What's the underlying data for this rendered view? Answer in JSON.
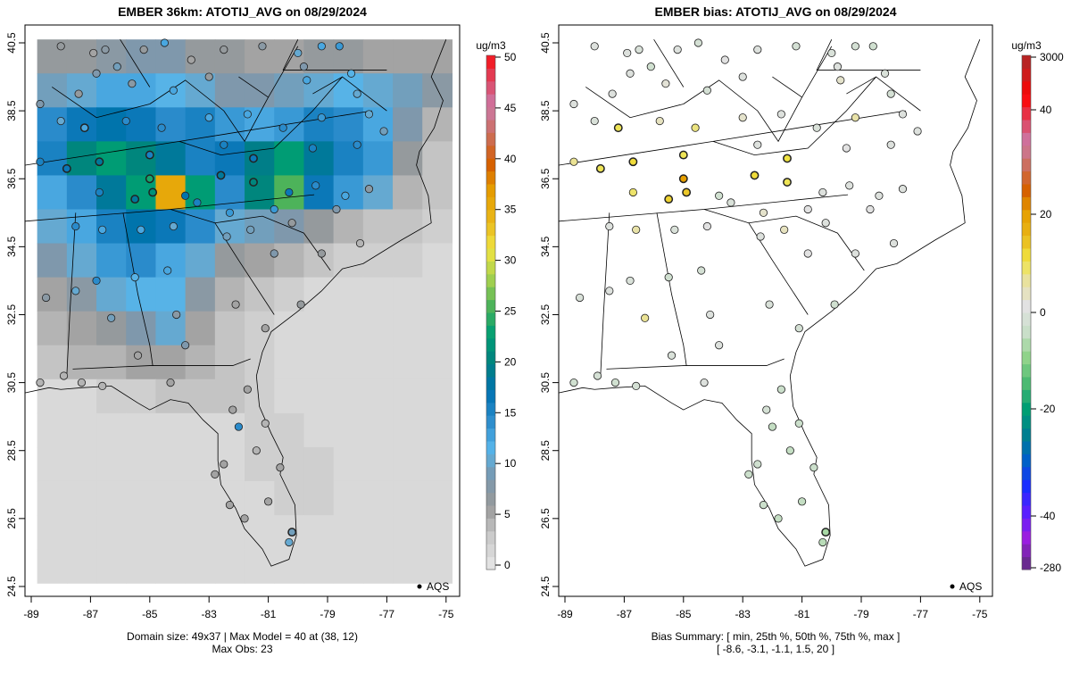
{
  "chart_data": [
    {
      "type": "heatmap",
      "title": "EMBER 36km: ATOTIJ_AVG on 08/29/2024",
      "units": "ug/m3",
      "xticks": [
        "-89",
        "-87",
        "-85",
        "-83",
        "-81",
        "-79",
        "-77",
        "-75"
      ],
      "yticks": [
        "24.5",
        "26.5",
        "28.5",
        "30.5",
        "32.5",
        "34.5",
        "36.5",
        "38.5",
        "40.5"
      ],
      "colorbar_ticks": [
        "0",
        "5",
        "10",
        "15",
        "20",
        "25",
        "30",
        "35",
        "40",
        "45",
        "50"
      ],
      "colorbar_range": [
        0,
        50
      ],
      "legend": "AQS",
      "grid_lon_range": [
        -88.8,
        -74.8
      ],
      "grid_lat_range": [
        24.6,
        40.6
      ],
      "grid_note": "model field, 1-degree resampled, rows north to south",
      "grid": [
        [
          6,
          6,
          7,
          8,
          8,
          6,
          6,
          5,
          5,
          6,
          6,
          5,
          5,
          5
        ],
        [
          9,
          10,
          12,
          12,
          11,
          10,
          8,
          8,
          9,
          10,
          11,
          10,
          9,
          7
        ],
        [
          14,
          16,
          17,
          16,
          14,
          15,
          13,
          12,
          13,
          15,
          14,
          12,
          8,
          4
        ],
        [
          15,
          20,
          22,
          20,
          18,
          15,
          16,
          19,
          22,
          18,
          15,
          13,
          6,
          3
        ],
        [
          12,
          14,
          18,
          22,
          35,
          22,
          14,
          20,
          25,
          16,
          13,
          10,
          4,
          3
        ],
        [
          10,
          12,
          15,
          17,
          16,
          14,
          10,
          9,
          8,
          6,
          4,
          3,
          3,
          2
        ],
        [
          8,
          10,
          13,
          14,
          12,
          10,
          6,
          5,
          4,
          3,
          2,
          2,
          2,
          1
        ],
        [
          5,
          7,
          10,
          11,
          11,
          7,
          4,
          3,
          2,
          1,
          1,
          1,
          1,
          1
        ],
        [
          4,
          5,
          6,
          8,
          10,
          5,
          3,
          2,
          1,
          1,
          1,
          1,
          1,
          1
        ],
        [
          3,
          4,
          4,
          5,
          5,
          4,
          3,
          2,
          1,
          1,
          1,
          1,
          1,
          1
        ],
        [
          1,
          1,
          2,
          2,
          3,
          3,
          3,
          2,
          1,
          1,
          1,
          1,
          1,
          1
        ],
        [
          1,
          1,
          1,
          1,
          1,
          1,
          1,
          2,
          2,
          1,
          1,
          1,
          1,
          1
        ],
        [
          1,
          1,
          1,
          1,
          1,
          1,
          1,
          2,
          2,
          2,
          1,
          1,
          1,
          1
        ],
        [
          1,
          1,
          1,
          1,
          1,
          1,
          1,
          1,
          2,
          2,
          1,
          1,
          1,
          1
        ],
        [
          1,
          1,
          1,
          1,
          1,
          1,
          1,
          1,
          1,
          1,
          1,
          1,
          1,
          1
        ],
        [
          1,
          1,
          1,
          1,
          1,
          1,
          1,
          1,
          1,
          1,
          1,
          1,
          1,
          1
        ]
      ],
      "footer": [
        "Domain size: 49x37 | Max Model = 40 at (38, 12)",
        "Max Obs: 23"
      ]
    },
    {
      "type": "scatter",
      "title": "EMBER bias: ATOTIJ_AVG on 08/29/2024",
      "units": "ug/m3",
      "xticks": [
        "-89",
        "-87",
        "-85",
        "-83",
        "-81",
        "-79",
        "-77",
        "-75"
      ],
      "yticks": [
        "24.5",
        "26.5",
        "28.5",
        "30.5",
        "32.5",
        "34.5",
        "36.5",
        "38.5",
        "40.5"
      ],
      "colorbar_ticks": [
        "-280",
        "-40",
        "-20",
        "0",
        "20",
        "40",
        "3000"
      ],
      "legend": "AQS",
      "footer": [
        "Bias Summary: [ min, 25th %, 50th %, 75th %, max ]",
        "[ -8.6,   -3.1,   -1.1,   1.5,   20 ]"
      ]
    }
  ],
  "stations": [
    [
      -88.0,
      40.4,
      6,
      -1
    ],
    [
      -86.9,
      40.2,
      5,
      -1
    ],
    [
      -86.5,
      40.3,
      7,
      -2
    ],
    [
      -85.2,
      40.3,
      6,
      -1
    ],
    [
      -84.5,
      40.5,
      12,
      -3
    ],
    [
      -83.6,
      40.0,
      5,
      0
    ],
    [
      -82.5,
      40.3,
      6,
      -1
    ],
    [
      -81.2,
      40.4,
      7,
      -3
    ],
    [
      -80.0,
      40.2,
      10,
      -2
    ],
    [
      -79.2,
      40.4,
      12,
      -3
    ],
    [
      -78.6,
      40.4,
      13,
      -4
    ],
    [
      -79.8,
      39.8,
      8,
      -1
    ],
    [
      -79.7,
      39.4,
      12,
      2
    ],
    [
      -78.2,
      39.6,
      11,
      -2
    ],
    [
      -78.0,
      39.0,
      10,
      -3
    ],
    [
      -86.8,
      39.6,
      8,
      -1
    ],
    [
      -86.1,
      39.8,
      9,
      -4
    ],
    [
      -85.6,
      39.3,
      7,
      1
    ],
    [
      -84.2,
      39.1,
      12,
      -3
    ],
    [
      -83.0,
      39.5,
      6,
      -1
    ],
    [
      -87.4,
      39.0,
      6,
      -1
    ],
    [
      -88.7,
      38.7,
      8,
      -1
    ],
    [
      -88.0,
      38.2,
      10,
      -2
    ],
    [
      -87.2,
      38.0,
      12,
      9
    ],
    [
      -85.8,
      38.2,
      14,
      3
    ],
    [
      -84.6,
      38.0,
      14,
      7
    ],
    [
      -83.0,
      38.3,
      12,
      2
    ],
    [
      -81.7,
      38.4,
      12,
      -1
    ],
    [
      -80.5,
      38.0,
      14,
      -2
    ],
    [
      -79.2,
      38.3,
      13,
      5
    ],
    [
      -77.6,
      38.4,
      10,
      -1
    ],
    [
      -77.1,
      37.9,
      9,
      -1
    ],
    [
      -78.0,
      37.5,
      14,
      -1
    ],
    [
      -79.5,
      37.4,
      15,
      0
    ],
    [
      -81.5,
      37.1,
      16,
      10
    ],
    [
      -82.5,
      37.5,
      15,
      -1
    ],
    [
      -85.0,
      37.2,
      15,
      9
    ],
    [
      -86.7,
      37.0,
      18,
      11
    ],
    [
      -87.8,
      36.8,
      16,
      9
    ],
    [
      -88.7,
      37.0,
      15,
      6
    ],
    [
      -85.0,
      36.5,
      23,
      20
    ],
    [
      -84.9,
      36.1,
      21,
      13
    ],
    [
      -85.5,
      35.9,
      18,
      12
    ],
    [
      -86.7,
      36.1,
      15,
      8
    ],
    [
      -83.8,
      36.0,
      17,
      -4
    ],
    [
      -82.6,
      36.6,
      18,
      11
    ],
    [
      -81.5,
      36.4,
      20,
      9
    ],
    [
      -80.3,
      36.1,
      16,
      -1
    ],
    [
      -79.4,
      36.3,
      14,
      -1
    ],
    [
      -78.4,
      36.0,
      12,
      -1
    ],
    [
      -80.8,
      35.6,
      13,
      0
    ],
    [
      -82.3,
      35.5,
      13,
      2
    ],
    [
      -83.4,
      35.8,
      15,
      -2
    ],
    [
      -87.5,
      35.1,
      14,
      -1
    ],
    [
      -86.6,
      35.0,
      12,
      5
    ],
    [
      -85.3,
      35.0,
      12,
      -2
    ],
    [
      -84.2,
      35.1,
      10,
      0
    ],
    [
      -81.6,
      35.0,
      9,
      3
    ],
    [
      -80.2,
      35.2,
      6,
      -1
    ],
    [
      -78.7,
      35.6,
      8,
      0
    ],
    [
      -77.6,
      36.2,
      7,
      -1
    ],
    [
      -77.9,
      34.6,
      4,
      -1
    ],
    [
      -79.2,
      34.3,
      6,
      -1
    ],
    [
      -80.8,
      34.3,
      8,
      0
    ],
    [
      -82.4,
      34.8,
      9,
      -1
    ],
    [
      -84.4,
      33.8,
      12,
      -3
    ],
    [
      -85.5,
      33.6,
      11,
      -4
    ],
    [
      -86.8,
      33.5,
      14,
      -2
    ],
    [
      -87.5,
      33.2,
      10,
      -1
    ],
    [
      -88.5,
      33.0,
      7,
      -2
    ],
    [
      -86.3,
      32.4,
      9,
      6
    ],
    [
      -84.1,
      32.5,
      7,
      -1
    ],
    [
      -82.1,
      32.8,
      5,
      -2
    ],
    [
      -81.1,
      32.1,
      5,
      -3
    ],
    [
      -79.9,
      32.8,
      6,
      -4
    ],
    [
      -83.8,
      31.6,
      8,
      -1
    ],
    [
      -85.4,
      31.3,
      5,
      -2
    ],
    [
      -87.9,
      30.7,
      4,
      -3
    ],
    [
      -88.7,
      30.5,
      4,
      -4
    ],
    [
      -87.3,
      30.5,
      4,
      -4
    ],
    [
      -86.6,
      30.4,
      4,
      -3
    ],
    [
      -84.3,
      30.5,
      5,
      -1
    ],
    [
      -81.7,
      30.3,
      5,
      -5
    ],
    [
      -82.2,
      29.7,
      5,
      -3
    ],
    [
      -82.0,
      29.2,
      14,
      -6
    ],
    [
      -81.1,
      29.3,
      4,
      -5
    ],
    [
      -82.5,
      28.1,
      5,
      -4
    ],
    [
      -82.8,
      27.8,
      5,
      -5
    ],
    [
      -81.4,
      28.5,
      4,
      -6
    ],
    [
      -80.6,
      28.0,
      5,
      -5
    ],
    [
      -81.8,
      26.5,
      5,
      -6
    ],
    [
      -80.2,
      26.1,
      9,
      -8.6
    ],
    [
      -80.3,
      25.8,
      10,
      -7
    ],
    [
      -81.0,
      27.0,
      5,
      -6
    ],
    [
      -82.3,
      26.9,
      5,
      -5
    ]
  ],
  "colors": {
    "conc_scale": [
      "#e2e2e2",
      "#c8c8c8",
      "#9a9a9a",
      "#7b98ae",
      "#56b4e9",
      "#2c8ccc",
      "#0072b2",
      "#008080",
      "#009e73",
      "#4db35a",
      "#a8d24e",
      "#f0e442",
      "#e9b619",
      "#e69f00",
      "#d55e00",
      "#cc6e5c",
      "#cc79a7",
      "#e0405a",
      "#ff0000"
    ],
    "bias_neg": [
      "#e2e2e2",
      "#c9dfc9",
      "#8fd38a",
      "#4cba72",
      "#009e73",
      "#007f90",
      "#0060c8",
      "#1a2eff",
      "#5a1eff",
      "#9a1ee0",
      "#6a2a90"
    ],
    "bias_pos": [
      "#e2e2e2",
      "#e8e2a8",
      "#f0e442",
      "#e9b619",
      "#e69f00",
      "#d55e00",
      "#cc6e5c",
      "#cc79a7",
      "#e0405a",
      "#ff0000",
      "#c81e1e",
      "#a52a2a"
    ]
  }
}
